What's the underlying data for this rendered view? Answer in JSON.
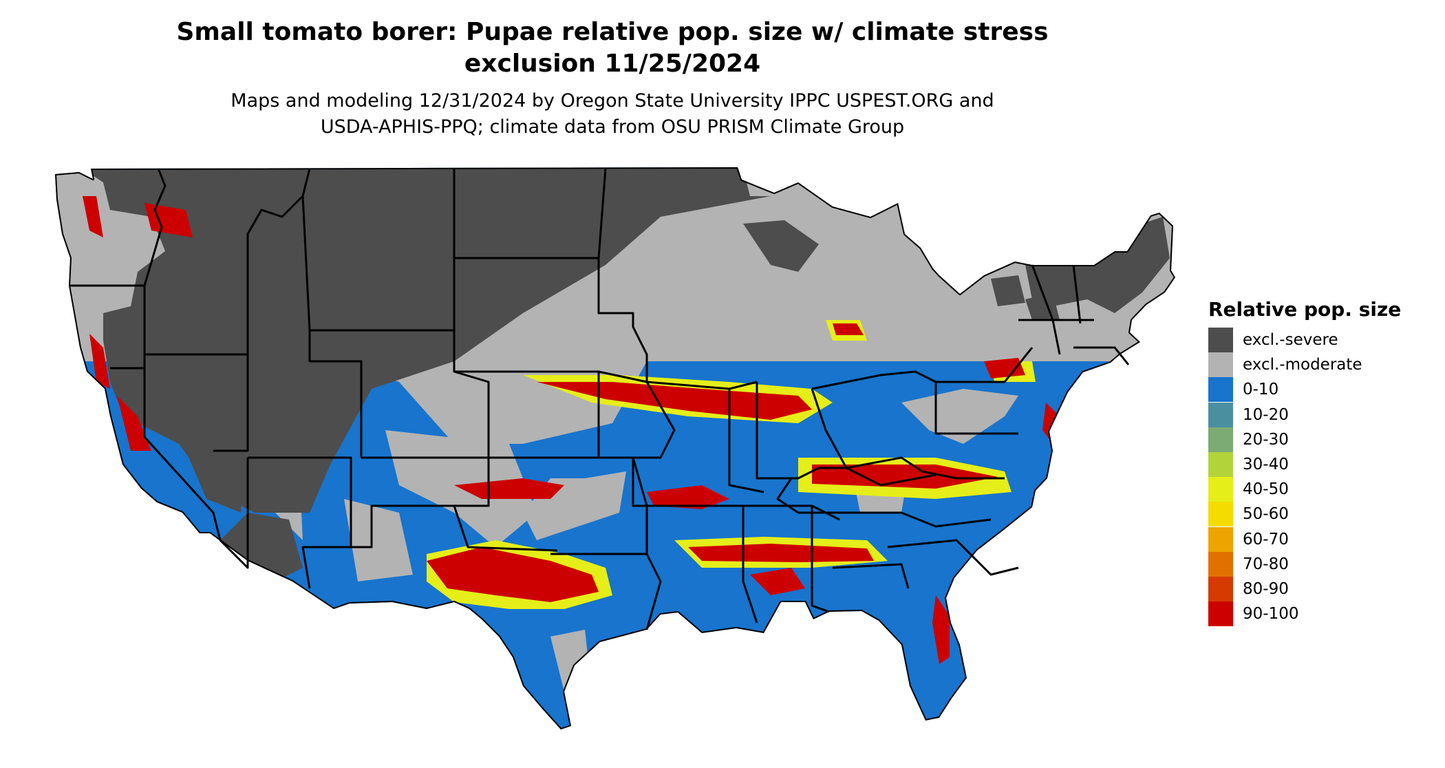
{
  "title_line1": "Small tomato borer: Pupae relative pop. size w/ climate stress",
  "title_line2": "exclusion 11/25/2024",
  "subtitle_line1": "Maps and modeling 12/31/2024 by Oregon State University IPPC USPEST.ORG and",
  "subtitle_line2": "USDA-APHIS-PPQ; climate data from OSU PRISM Climate Group",
  "legend": {
    "title": "Relative pop. size",
    "items": [
      {
        "label": "excl.-severe",
        "color": "#4d4d4d"
      },
      {
        "label": "excl.-moderate",
        "color": "#b3b3b3"
      },
      {
        "label": "0-10",
        "color": "#1874cd"
      },
      {
        "label": "10-20",
        "color": "#4a8fa0"
      },
      {
        "label": "20-30",
        "color": "#7cab74"
      },
      {
        "label": "30-40",
        "color": "#b3d33b"
      },
      {
        "label": "40-50",
        "color": "#e5ee18"
      },
      {
        "label": "50-60",
        "color": "#f5dc00"
      },
      {
        "label": "60-70",
        "color": "#eea400"
      },
      {
        "label": "70-80",
        "color": "#e27000"
      },
      {
        "label": "80-90",
        "color": "#d53a00"
      },
      {
        "label": "90-100",
        "color": "#cd0000"
      }
    ]
  },
  "map": {
    "region": "Conterminous United States",
    "colors": {
      "severe": "#4d4d4d",
      "moderate": "#b3b3b3",
      "low": "#1874cd",
      "mid": "#eea400",
      "yellow": "#e5ee18",
      "high": "#cd0000",
      "border": "#000000"
    }
  }
}
